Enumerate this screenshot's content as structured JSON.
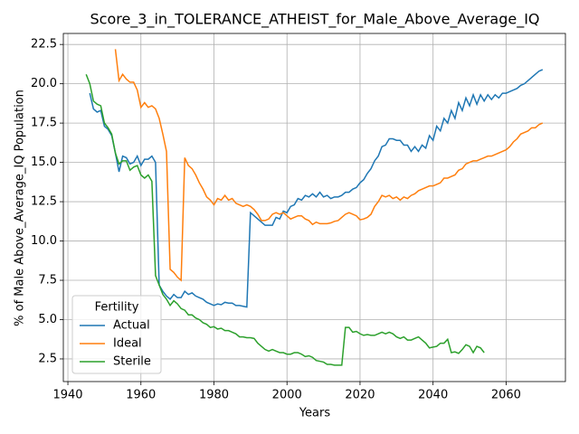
{
  "chart_data": {
    "type": "line",
    "title": "Score_3_in_TOLERANCE_ATHEIST_for_Male_Above_Average_IQ",
    "x_label": "Years",
    "y_label": "% of Male Above_Average_IQ Population",
    "legend_title": "Fertility",
    "legend_loc": "lower left",
    "grid": true,
    "xlim": [
      1938.75,
      2076.25
    ],
    "ylim": [
      1.06,
      23.2
    ],
    "xticks": [
      1940,
      1960,
      1980,
      2000,
      2020,
      2040,
      2060
    ],
    "yticks": [
      2.5,
      {
        "value": 5,
        "label": "5.0"
      },
      7.5,
      {
        "value": 10,
        "label": "10.0"
      },
      12.5,
      {
        "value": 15,
        "label": "15.0"
      },
      17.5,
      {
        "value": 20,
        "label": "20.0"
      },
      22.5
    ],
    "x": [
      1945,
      1946,
      1947,
      1948,
      1949,
      1950,
      1951,
      1952,
      1953,
      1954,
      1955,
      1956,
      1957,
      1958,
      1959,
      1960,
      1961,
      1962,
      1963,
      1964,
      1965,
      1966,
      1967,
      1968,
      1969,
      1970,
      1971,
      1972,
      1973,
      1974,
      1975,
      1976,
      1977,
      1978,
      1979,
      1980,
      1981,
      1982,
      1983,
      1984,
      1985,
      1986,
      1987,
      1988,
      1989,
      1990,
      1991,
      1992,
      1993,
      1994,
      1995,
      1996,
      1997,
      1998,
      1999,
      2000,
      2001,
      2002,
      2003,
      2004,
      2005,
      2006,
      2007,
      2008,
      2009,
      2010,
      2011,
      2012,
      2013,
      2014,
      2015,
      2016,
      2017,
      2018,
      2019,
      2020,
      2021,
      2022,
      2023,
      2024,
      2025,
      2026,
      2027,
      2028,
      2029,
      2030,
      2031,
      2032,
      2033,
      2034,
      2035,
      2036,
      2037,
      2038,
      2039,
      2040,
      2041,
      2042,
      2043,
      2044,
      2045,
      2046,
      2047,
      2048,
      2049,
      2050,
      2051,
      2052,
      2053,
      2054,
      2055,
      2056,
      2057,
      2058,
      2059,
      2060,
      2061,
      2062,
      2063,
      2064,
      2065,
      2066,
      2067,
      2068,
      2069,
      2070
    ],
    "series": [
      {
        "name": "Actual",
        "color": "#1f77b4",
        "values": [
          null,
          19.4,
          18.4,
          18.2,
          18.3,
          17.3,
          17.1,
          16.7,
          15.6,
          14.4,
          15.4,
          15.3,
          14.9,
          15.0,
          15.4,
          14.8,
          15.2,
          15.2,
          15.4,
          15.0,
          7.2,
          6.8,
          6.5,
          6.3,
          6.6,
          6.4,
          6.4,
          6.8,
          6.6,
          6.7,
          6.5,
          6.4,
          6.3,
          6.1,
          6.0,
          5.9,
          6.0,
          5.95,
          6.1,
          6.05,
          6.05,
          5.9,
          5.9,
          5.85,
          5.8,
          11.8,
          11.6,
          11.4,
          11.2,
          11.0,
          11.0,
          11.0,
          11.5,
          11.4,
          11.9,
          11.8,
          12.2,
          12.3,
          12.7,
          12.6,
          12.9,
          12.8,
          13.0,
          12.8,
          13.1,
          12.8,
          12.9,
          12.7,
          12.8,
          12.8,
          12.9,
          13.1,
          13.1,
          13.3,
          13.4,
          13.7,
          13.9,
          14.3,
          14.6,
          15.1,
          15.4,
          16.0,
          16.1,
          16.5,
          16.5,
          16.4,
          16.4,
          16.1,
          16.1,
          15.7,
          16.0,
          15.7,
          16.1,
          15.9,
          16.7,
          16.4,
          17.3,
          17.0,
          17.8,
          17.5,
          18.3,
          17.8,
          18.8,
          18.3,
          19.1,
          18.6,
          19.3,
          18.7,
          19.3,
          18.9,
          19.3,
          19.0,
          19.3,
          19.1,
          19.4,
          19.4,
          19.5,
          19.6,
          19.7,
          19.9,
          20.0,
          20.2,
          20.4,
          20.6,
          20.8,
          20.9
        ]
      },
      {
        "name": "Ideal",
        "color": "#ff7f0e",
        "values": [
          null,
          null,
          null,
          null,
          null,
          null,
          null,
          null,
          22.2,
          20.2,
          20.6,
          20.3,
          20.1,
          20.1,
          19.6,
          18.5,
          18.8,
          18.5,
          18.6,
          18.4,
          17.8,
          16.8,
          15.7,
          8.2,
          8.0,
          7.7,
          7.5,
          15.3,
          14.8,
          14.6,
          14.2,
          13.7,
          13.3,
          12.8,
          12.6,
          12.3,
          12.7,
          12.6,
          12.9,
          12.6,
          12.7,
          12.4,
          12.3,
          12.2,
          12.3,
          12.2,
          12.0,
          11.7,
          11.3,
          11.3,
          11.4,
          11.7,
          11.8,
          11.7,
          11.8,
          11.6,
          11.4,
          11.5,
          11.6,
          11.6,
          11.4,
          11.3,
          11.05,
          11.2,
          11.1,
          11.1,
          11.1,
          11.15,
          11.25,
          11.3,
          11.5,
          11.7,
          11.8,
          11.7,
          11.6,
          11.35,
          11.4,
          11.5,
          11.7,
          12.2,
          12.5,
          12.9,
          12.8,
          12.9,
          12.7,
          12.8,
          12.6,
          12.8,
          12.7,
          12.9,
          13.0,
          13.2,
          13.3,
          13.4,
          13.5,
          13.5,
          13.6,
          13.7,
          14.0,
          14.0,
          14.1,
          14.2,
          14.5,
          14.6,
          14.9,
          15.0,
          15.1,
          15.1,
          15.2,
          15.3,
          15.4,
          15.4,
          15.5,
          15.6,
          15.7,
          15.8,
          16.0,
          16.3,
          16.5,
          16.8,
          16.9,
          17.0,
          17.2,
          17.2,
          17.4,
          17.5
        ]
      },
      {
        "name": "Sterile",
        "color": "#2ca02c",
        "values": [
          20.6,
          20.0,
          18.9,
          18.7,
          18.6,
          17.5,
          17.2,
          16.8,
          15.6,
          14.9,
          15.1,
          15.1,
          14.5,
          14.7,
          14.8,
          14.2,
          14.0,
          14.2,
          13.8,
          7.8,
          7.2,
          6.6,
          6.3,
          5.9,
          6.2,
          6.0,
          5.7,
          5.6,
          5.3,
          5.3,
          5.1,
          5.0,
          4.8,
          4.7,
          4.5,
          4.55,
          4.4,
          4.45,
          4.3,
          4.3,
          4.2,
          4.1,
          3.9,
          3.9,
          3.85,
          3.85,
          3.8,
          3.5,
          3.3,
          3.1,
          3.0,
          3.1,
          3.0,
          2.9,
          2.9,
          2.8,
          2.8,
          2.9,
          2.9,
          2.8,
          2.65,
          2.7,
          2.6,
          2.4,
          2.35,
          2.3,
          2.15,
          2.15,
          2.1,
          2.1,
          2.1,
          4.5,
          4.5,
          4.2,
          4.25,
          4.1,
          4.0,
          4.05,
          4.0,
          4.0,
          4.1,
          4.2,
          4.1,
          4.2,
          4.1,
          3.9,
          3.8,
          3.9,
          3.7,
          3.7,
          3.8,
          3.9,
          3.7,
          3.5,
          3.2,
          3.25,
          3.3,
          3.5,
          3.5,
          3.75,
          2.9,
          2.95,
          2.85,
          3.1,
          3.4,
          3.3,
          2.9,
          3.3,
          3.2,
          2.9,
          null,
          null,
          null,
          null,
          null,
          null,
          null,
          null,
          null,
          null,
          null,
          null,
          null,
          null,
          null,
          null
        ]
      }
    ]
  }
}
